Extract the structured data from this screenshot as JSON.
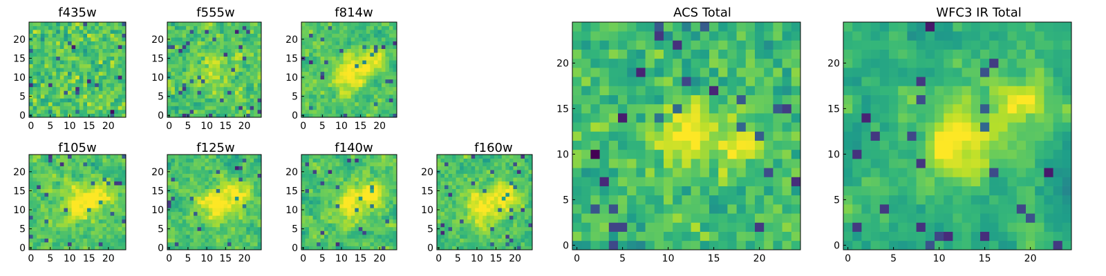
{
  "chart_data": [
    {
      "type": "heatmap",
      "title": "f435w",
      "colormap": "viridis",
      "pattern": "noise",
      "grid_size": 25,
      "xlim": [
        0,
        24
      ],
      "ylim": [
        0,
        24
      ],
      "xticks": [
        0,
        5,
        10,
        15,
        20
      ],
      "yticks": [
        0,
        5,
        10,
        15,
        20
      ],
      "seed": 11
    },
    {
      "type": "heatmap",
      "title": "f555w",
      "colormap": "viridis",
      "pattern": "faint-source",
      "grid_size": 25,
      "xlim": [
        0,
        24
      ],
      "ylim": [
        0,
        24
      ],
      "xticks": [
        0,
        5,
        10,
        15,
        20
      ],
      "yticks": [
        0,
        5,
        10,
        15,
        20
      ],
      "seed": 23
    },
    {
      "type": "heatmap",
      "title": "f814w",
      "colormap": "viridis",
      "pattern": "source",
      "grid_size": 25,
      "xlim": [
        0,
        24
      ],
      "ylim": [
        0,
        24
      ],
      "xticks": [
        0,
        5,
        10,
        15,
        20
      ],
      "yticks": [
        0,
        5,
        10,
        15,
        20
      ],
      "seed": 37
    },
    {
      "type": "heatmap",
      "title": "f105w",
      "colormap": "viridis",
      "pattern": "source",
      "grid_size": 25,
      "xlim": [
        0,
        24
      ],
      "ylim": [
        0,
        24
      ],
      "xticks": [
        0,
        5,
        10,
        15,
        20
      ],
      "yticks": [
        0,
        5,
        10,
        15,
        20
      ],
      "seed": 41
    },
    {
      "type": "heatmap",
      "title": "f125w",
      "colormap": "viridis",
      "pattern": "source",
      "grid_size": 25,
      "xlim": [
        0,
        24
      ],
      "ylim": [
        0,
        24
      ],
      "xticks": [
        0,
        5,
        10,
        15,
        20
      ],
      "yticks": [
        0,
        5,
        10,
        15,
        20
      ],
      "seed": 53
    },
    {
      "type": "heatmap",
      "title": "f140w",
      "colormap": "viridis",
      "pattern": "source",
      "grid_size": 25,
      "xlim": [
        0,
        24
      ],
      "ylim": [
        0,
        24
      ],
      "xticks": [
        0,
        5,
        10,
        15,
        20
      ],
      "yticks": [
        0,
        5,
        10,
        15,
        20
      ],
      "seed": 67
    },
    {
      "type": "heatmap",
      "title": "f160w",
      "colormap": "viridis",
      "pattern": "source",
      "grid_size": 25,
      "xlim": [
        0,
        24
      ],
      "ylim": [
        0,
        24
      ],
      "xticks": [
        0,
        5,
        10,
        15,
        20
      ],
      "yticks": [
        0,
        5,
        10,
        15,
        20
      ],
      "seed": 79
    },
    {
      "type": "heatmap",
      "title": "ACS Total",
      "colormap": "viridis",
      "pattern": "source-acs",
      "grid_size": 25,
      "xlim": [
        0,
        24
      ],
      "ylim": [
        0,
        24
      ],
      "xticks": [
        0,
        5,
        10,
        15,
        20
      ],
      "yticks": [
        0,
        5,
        10,
        15,
        20
      ],
      "seed": 97
    },
    {
      "type": "heatmap",
      "title": "WFC3 IR Total",
      "colormap": "viridis",
      "pattern": "source-ir",
      "grid_size": 25,
      "xlim": [
        0,
        24
      ],
      "ylim": [
        0,
        24
      ],
      "xticks": [
        0,
        5,
        10,
        15,
        20
      ],
      "yticks": [
        0,
        5,
        10,
        15,
        20
      ],
      "seed": 131
    }
  ]
}
